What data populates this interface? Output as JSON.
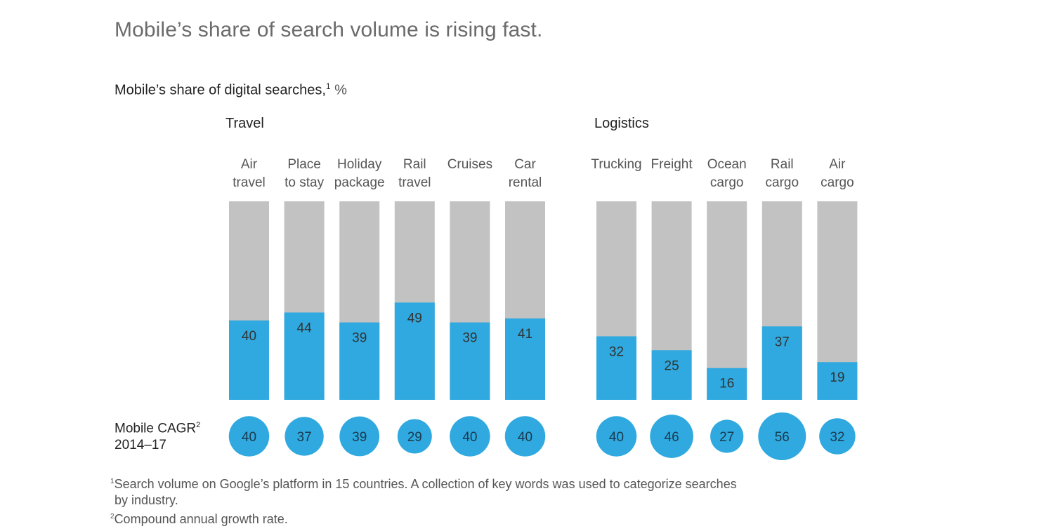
{
  "headline": "Mobile’s share of search volume is rising fast.",
  "subtitle": {
    "text": "Mobile’s share of digital searches,",
    "sup": "1",
    "unit": " %"
  },
  "colors": {
    "mobile": "#2fa9df",
    "rest": "#c2c2c2",
    "circle": "#2fa9df"
  },
  "cagr_title": {
    "line1": "Mobile CAGR",
    "sup": "2",
    "line2": "2014–17"
  },
  "footnotes": {
    "fn1_sup": "1",
    "fn1_line1": "Search volume on Google’s platform in 15 countries. A collection of key words was used to categorize searches",
    "fn1_line2": "by industry.",
    "fn2_sup": "2",
    "fn2": "Compound annual growth rate."
  },
  "chart_data": {
    "type": "bar",
    "stacked_to": 100,
    "ylim": [
      0,
      100
    ],
    "groups": [
      {
        "name": "Travel",
        "categories": [
          {
            "label": [
              "Air",
              "travel"
            ],
            "mobile_share": 40,
            "cagr": 40
          },
          {
            "label": [
              "Place",
              "to stay"
            ],
            "mobile_share": 44,
            "cagr": 37
          },
          {
            "label": [
              "Holiday",
              "package"
            ],
            "mobile_share": 39,
            "cagr": 39
          },
          {
            "label": [
              "Rail",
              "travel"
            ],
            "mobile_share": 49,
            "cagr": 29
          },
          {
            "label": [
              "Cruises"
            ],
            "mobile_share": 39,
            "cagr": 40
          },
          {
            "label": [
              "Car",
              "rental"
            ],
            "mobile_share": 41,
            "cagr": 40
          }
        ]
      },
      {
        "name": "Logistics",
        "categories": [
          {
            "label": [
              "Trucking"
            ],
            "mobile_share": 32,
            "cagr": 40
          },
          {
            "label": [
              "Freight"
            ],
            "mobile_share": 25,
            "cagr": 46
          },
          {
            "label": [
              "Ocean",
              "cargo"
            ],
            "mobile_share": 16,
            "cagr": 27
          },
          {
            "label": [
              "Rail",
              "cargo"
            ],
            "mobile_share": 37,
            "cagr": 56
          },
          {
            "label": [
              "Air",
              "cargo"
            ],
            "mobile_share": 19,
            "cagr": 32
          }
        ]
      }
    ]
  }
}
